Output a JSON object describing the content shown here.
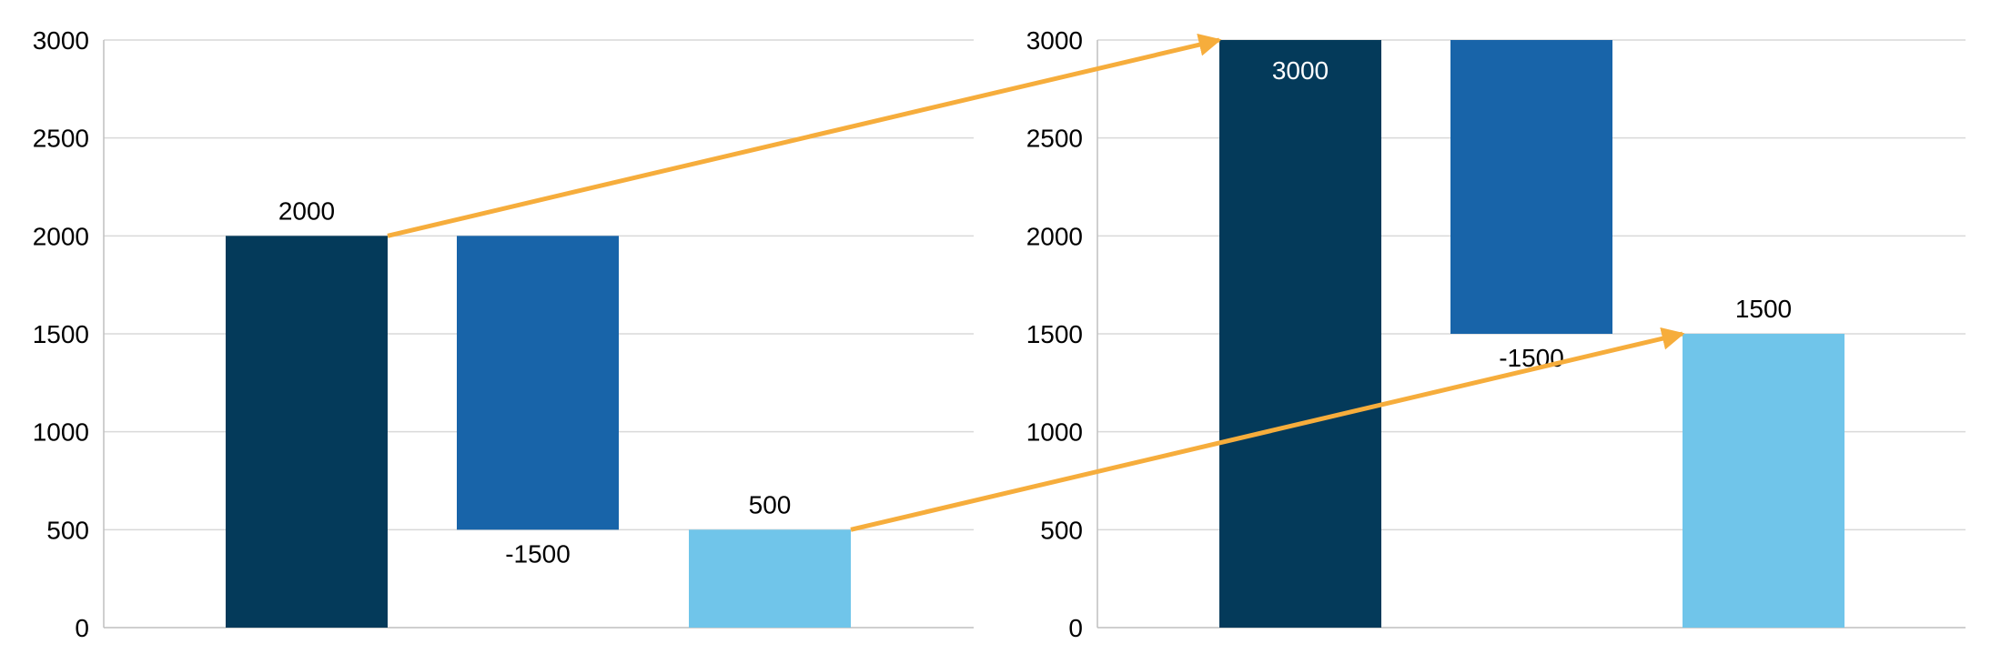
{
  "chart_data": [
    {
      "type": "bar",
      "subtype": "waterfall",
      "categories": [
        "",
        "",
        ""
      ],
      "bars": [
        {
          "start": 0,
          "end": 2000,
          "label": "2000",
          "label_position": "above",
          "color": "#043a5a"
        },
        {
          "start": 2000,
          "end": 500,
          "label": "-1500",
          "label_position": "below",
          "color": "#1864a9"
        },
        {
          "start": 0,
          "end": 500,
          "label": "500",
          "label_position": "above",
          "color": "#70c5ea"
        }
      ],
      "yticks": [
        "0",
        "500",
        "1000",
        "1500",
        "2000",
        "2500",
        "3000"
      ],
      "ylim": [
        0,
        3000
      ],
      "grid": true,
      "title": "",
      "xlabel": "",
      "ylabel": ""
    },
    {
      "type": "bar",
      "subtype": "waterfall",
      "categories": [
        "",
        "",
        ""
      ],
      "bars": [
        {
          "start": 0,
          "end": 3000,
          "label": "3000",
          "label_position": "inside-top",
          "color": "#043a5a"
        },
        {
          "start": 3000,
          "end": 1500,
          "label": "-1500",
          "label_position": "below",
          "color": "#1864a9"
        },
        {
          "start": 0,
          "end": 1500,
          "label": "1500",
          "label_position": "above",
          "color": "#70c5ea"
        }
      ],
      "yticks": [
        "0",
        "500",
        "1000",
        "1500",
        "2000",
        "2500",
        "3000"
      ],
      "ylim": [
        0,
        3000
      ],
      "grid": true,
      "title": "",
      "xlabel": "",
      "ylabel": ""
    }
  ],
  "annotations": [
    {
      "type": "arrow",
      "from": {
        "chart": 0,
        "bar": 0,
        "value": 2000
      },
      "to": {
        "chart": 1,
        "bar": 0,
        "value": 3000
      },
      "color": "#f6ad3c"
    },
    {
      "type": "arrow",
      "from": {
        "chart": 0,
        "bar": 2,
        "value": 500
      },
      "to": {
        "chart": 1,
        "bar": 2,
        "value": 1500
      },
      "color": "#f6ad3c"
    }
  ],
  "colors": {
    "grid": "#d9d9d9",
    "axis": "#bfbfbf",
    "text": "#000000",
    "label_inside": "#ffffff"
  }
}
